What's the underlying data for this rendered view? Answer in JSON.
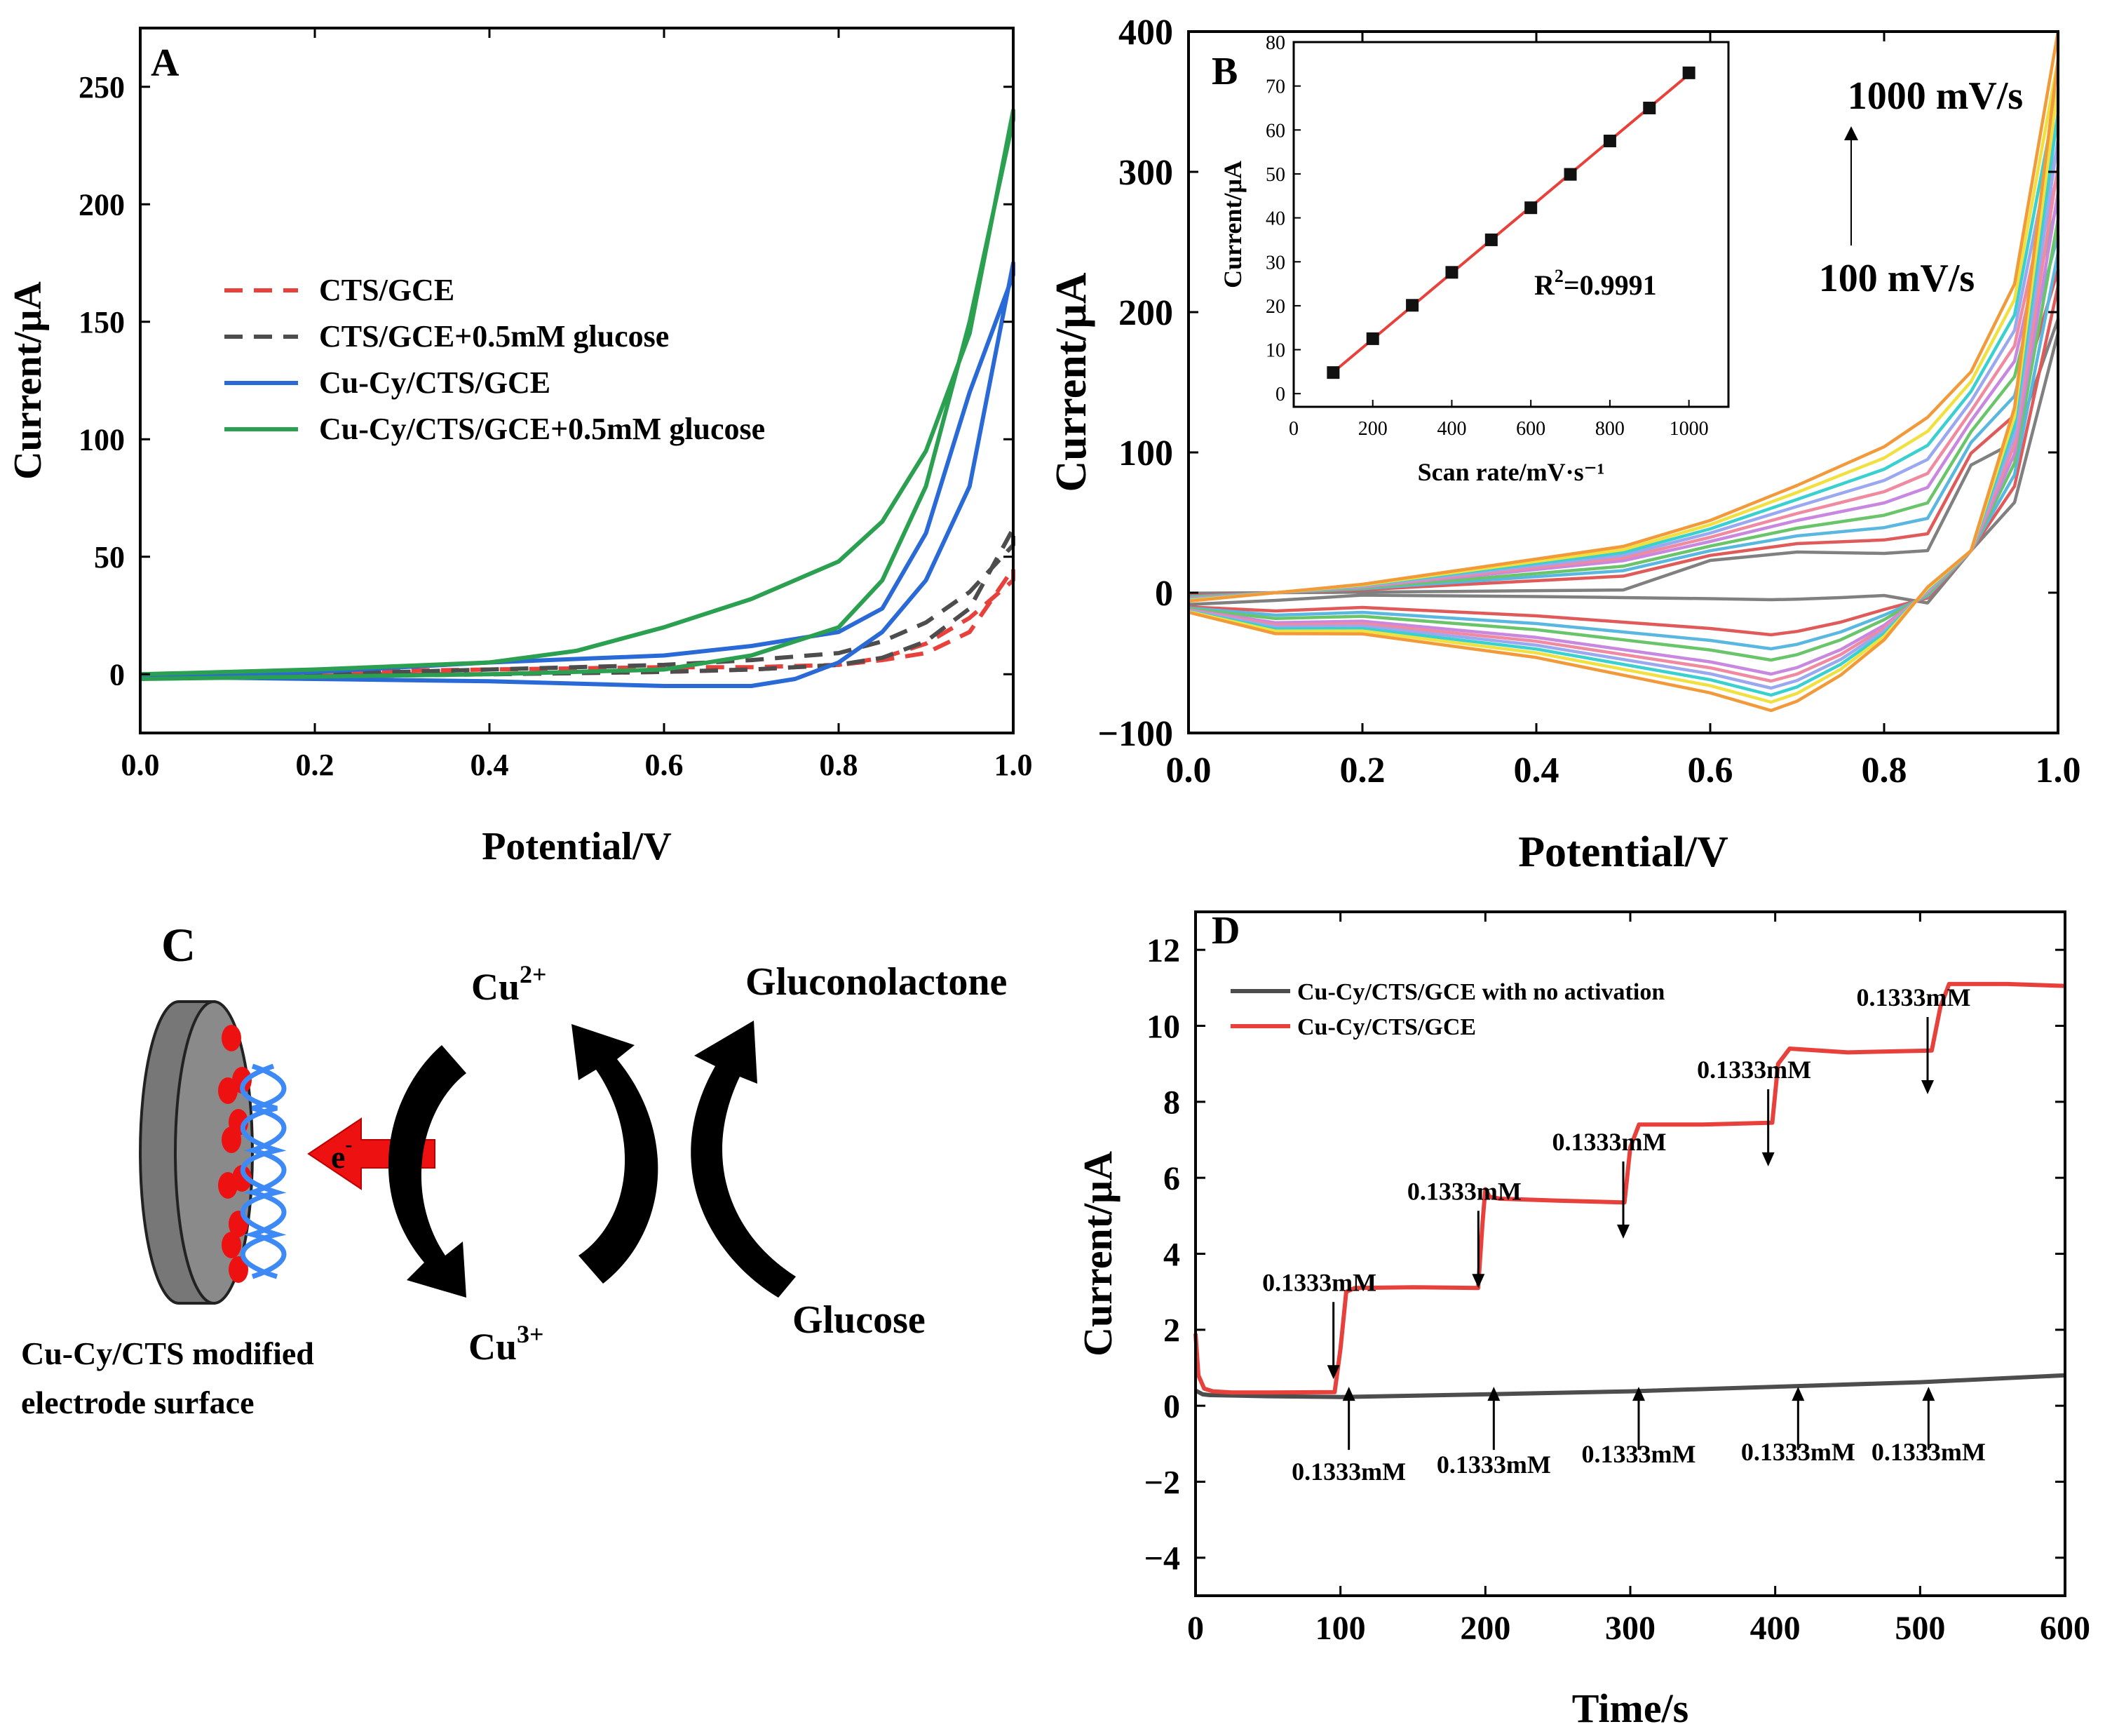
{
  "chart_data": [
    {
      "id": "A",
      "type": "line",
      "panel_label": "A",
      "xlabel": "Potential/V",
      "ylabel": "Current/μA",
      "xlim": [
        0.0,
        1.0
      ],
      "ylim": [
        -25,
        275
      ],
      "x_ticks": [
        "0.0",
        "0.2",
        "0.4",
        "0.6",
        "0.8",
        "1.0"
      ],
      "y_ticks": [
        "0",
        "50",
        "100",
        "150",
        "200",
        "250"
      ],
      "legend": [
        "CTS/GCE",
        "CTS/GCE+0.5mM glucose",
        "Cu-Cy/CTS/GCE",
        "Cu-Cy/CTS/GCE+0.5mM glucose"
      ],
      "series": [
        {
          "name": "CTS/GCE",
          "color": "#e8413c",
          "style": "dashed",
          "x": [
            0.0,
            0.2,
            0.4,
            0.6,
            0.7,
            0.8,
            0.85,
            0.9,
            0.95,
            1.0,
            1.0,
            0.95,
            0.9,
            0.85,
            0.8,
            0.7,
            0.6,
            0.4,
            0.2,
            0.0
          ],
          "y": [
            0,
            0,
            0,
            1,
            2,
            4,
            6,
            9,
            18,
            45,
            40,
            24,
            13,
            7,
            4,
            3,
            3,
            2,
            1,
            0
          ]
        },
        {
          "name": "CTS/GCE+0.5mM glucose",
          "color": "#4d4d4d",
          "style": "dashed",
          "x": [
            0.0,
            0.2,
            0.4,
            0.6,
            0.7,
            0.8,
            0.85,
            0.9,
            0.95,
            1.0,
            1.0,
            0.95,
            0.9,
            0.85,
            0.8,
            0.7,
            0.6,
            0.4,
            0.2,
            0.0
          ],
          "y": [
            -1,
            -1,
            0,
            1,
            2,
            4,
            7,
            14,
            28,
            62,
            55,
            35,
            22,
            14,
            9,
            6,
            4,
            2,
            0,
            -1
          ]
        },
        {
          "name": "Cu-Cy/CTS/GCE",
          "color": "#2a6ad6",
          "style": "solid",
          "x": [
            0.0,
            0.2,
            0.4,
            0.6,
            0.7,
            0.75,
            0.8,
            0.85,
            0.9,
            0.95,
            1.0,
            1.0,
            0.95,
            0.9,
            0.85,
            0.8,
            0.7,
            0.6,
            0.4,
            0.2,
            0.0
          ],
          "y": [
            -1,
            -2,
            -3,
            -5,
            -5,
            -2,
            5,
            18,
            40,
            80,
            175,
            170,
            120,
            60,
            28,
            18,
            12,
            8,
            5,
            1,
            -1
          ]
        },
        {
          "name": "Cu-Cy/CTS/GCE+0.5mM glucose",
          "color": "#2aa050",
          "style": "solid",
          "x": [
            0.0,
            0.2,
            0.4,
            0.5,
            0.6,
            0.7,
            0.8,
            0.85,
            0.9,
            0.95,
            1.0,
            1.0,
            0.95,
            0.9,
            0.85,
            0.8,
            0.7,
            0.6,
            0.4,
            0.2,
            0.0
          ],
          "y": [
            0,
            2,
            5,
            10,
            20,
            32,
            48,
            65,
            95,
            145,
            240,
            236,
            150,
            80,
            40,
            20,
            8,
            2,
            0,
            -1,
            -2
          ]
        }
      ]
    },
    {
      "id": "B",
      "type": "line",
      "panel_label": "B",
      "xlabel": "Potential/V",
      "ylabel": "Current/μA",
      "xlim": [
        0.0,
        1.0
      ],
      "ylim": [
        -100,
        400
      ],
      "x_ticks": [
        "0.0",
        "0.2",
        "0.4",
        "0.6",
        "0.8",
        "1.0"
      ],
      "y_ticks": [
        "−100",
        "0",
        "100",
        "200",
        "300",
        "400"
      ],
      "annotations": {
        "top": "1000 mV/s",
        "bottom": "100 mV/s"
      },
      "scan_rates_mV_s": [
        100,
        200,
        300,
        400,
        500,
        600,
        700,
        800,
        900,
        1000
      ],
      "series_colors": [
        "#808080",
        "#e05a5a",
        "#5ab8e0",
        "#6ac46a",
        "#c888e0",
        "#f08aa0",
        "#9aa8f0",
        "#3ad0d0",
        "#f0e040",
        "#f29a3a"
      ],
      "upper_peak_current": [
        30,
        42,
        53,
        64,
        75,
        85,
        95,
        105,
        115,
        125
      ],
      "lower_min_current": [
        -5,
        -30,
        -40,
        -48,
        -58,
        -63,
        -68,
        -73,
        -78,
        -84
      ],
      "upper_right_end": [
        195,
        230,
        255,
        280,
        300,
        320,
        340,
        360,
        380,
        400
      ],
      "inset": {
        "type": "scatter",
        "xlabel": "Scan rate/mV·s⁻¹",
        "ylabel": "Current/μA",
        "xlim": [
          0,
          1100
        ],
        "ylim": [
          -3,
          80
        ],
        "x_ticks": [
          "0",
          "200",
          "400",
          "600",
          "800",
          "1000"
        ],
        "y_ticks": [
          "0",
          "10",
          "20",
          "30",
          "40",
          "50",
          "60",
          "70",
          "80"
        ],
        "x": [
          100,
          200,
          300,
          400,
          500,
          600,
          700,
          800,
          900,
          1000
        ],
        "y": [
          4.8,
          12.5,
          20.1,
          27.6,
          35.0,
          42.3,
          49.9,
          57.5,
          65.0,
          73.0
        ],
        "fit_color": "#e8413c",
        "r2_label": "R",
        "r2_sup": "2",
        "r2_value": "=0.9991"
      }
    },
    {
      "id": "D",
      "type": "line",
      "panel_label": "D",
      "xlabel": "Time/s",
      "ylabel": "Current/μA",
      "xlim": [
        0,
        600
      ],
      "ylim": [
        -5,
        13
      ],
      "x_ticks": [
        "0",
        "100",
        "200",
        "300",
        "400",
        "500",
        "600"
      ],
      "y_ticks": [
        "−4",
        "−2",
        "0",
        "2",
        "4",
        "6",
        "8",
        "10",
        "12"
      ],
      "legend": [
        "Cu-Cy/CTS/GCE with no activation",
        "Cu-Cy/CTS/GCE"
      ],
      "series": [
        {
          "name": "Cu-Cy/CTS/GCE with no activation",
          "color": "#4d4d4d",
          "x": [
            0,
            5,
            10,
            50,
            100,
            200,
            300,
            400,
            500,
            600
          ],
          "y": [
            0.4,
            0.3,
            0.28,
            0.25,
            0.23,
            0.3,
            0.38,
            0.5,
            0.62,
            0.8
          ]
        },
        {
          "name": "Cu-Cy/CTS/GCE",
          "color": "#e8413c",
          "x": [
            0,
            2,
            6,
            12,
            25,
            50,
            96,
            100,
            104,
            110,
            150,
            195,
            198,
            200,
            203,
            210,
            250,
            296,
            300,
            306,
            350,
            398,
            402,
            410,
            450,
            508,
            514,
            520,
            560,
            600
          ],
          "y": [
            1.9,
            0.8,
            0.45,
            0.38,
            0.35,
            0.35,
            0.36,
            1.5,
            3.0,
            3.1,
            3.12,
            3.1,
            4.8,
            5.7,
            5.5,
            5.45,
            5.4,
            5.35,
            6.8,
            7.4,
            7.4,
            7.45,
            9.0,
            9.4,
            9.3,
            9.35,
            10.5,
            11.1,
            11.1,
            11.05
          ]
        }
      ],
      "red_annotations": [
        {
          "text": "0.1333mM",
          "t": 100
        },
        {
          "text": "0.1333mM",
          "t": 200
        },
        {
          "text": "0.1333mM",
          "t": 300
        },
        {
          "text": "0.1333mM",
          "t": 400
        },
        {
          "text": "0.1333mM",
          "t": 510
        }
      ],
      "black_annotations": [
        {
          "text": "0.1333mM",
          "t": 100
        },
        {
          "text": "0.1333mM",
          "t": 200
        },
        {
          "text": "0.1333mM",
          "t": 300
        },
        {
          "text": "0.1333mM",
          "t": 410
        },
        {
          "text": "0.1333mM",
          "t": 500
        }
      ]
    }
  ],
  "schematic": {
    "panel_label": "C",
    "cu2": "Cu",
    "cu2_sup": "2+",
    "cu3": "Cu",
    "cu3_sup": "3+",
    "product": "Gluconolactone",
    "substrate": "Glucose",
    "electron": "e",
    "electron_sup": "-",
    "caption_line1": "Cu-Cy/CTS modified",
    "caption_line2": "electrode surface"
  }
}
